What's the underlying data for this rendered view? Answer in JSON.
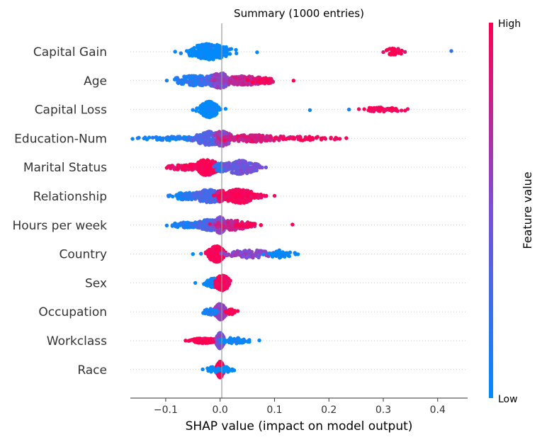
{
  "chart_data": {
    "type": "scatter",
    "subtype": "shap-beeswarm-summary",
    "title": "Summary (1000 entries)",
    "xlabel": "SHAP value (impact on model output)",
    "xlim": [
      -0.165,
      0.455
    ],
    "xticks": [
      -0.1,
      0.0,
      0.1,
      0.2,
      0.3,
      0.4
    ],
    "xtick_labels": [
      "−0.1",
      "0.0",
      "0.1",
      "0.2",
      "0.3",
      "0.4"
    ],
    "grid": false,
    "colorbar": {
      "label": "Feature value",
      "high_label": "High",
      "low_label": "Low",
      "low_color": "#008bfb",
      "mid_color": "#7b4fd8",
      "high_color": "#ff0052"
    },
    "features": [
      {
        "name": "Capital Gain",
        "clusters": [
          {
            "center": -0.02,
            "spread": 0.018,
            "count": 260,
            "width": 0.8,
            "value": 0.0
          },
          {
            "center": 0.32,
            "spread": 0.008,
            "count": 30,
            "width": 0.35,
            "value": 1.0
          }
        ],
        "outliers": [
          {
            "x": 0.068,
            "value": 0.0
          },
          {
            "x": 0.3,
            "value": 0.9
          },
          {
            "x": 0.34,
            "value": 0.85
          },
          {
            "x": 0.425,
            "value": 0.2
          },
          {
            "x": 0.012,
            "value": 0.0
          }
        ]
      },
      {
        "name": "Age",
        "clusters": [
          {
            "center": -0.045,
            "spread": 0.02,
            "count": 160,
            "width": 0.5,
            "value": 0.12
          },
          {
            "center": -0.01,
            "spread": 0.012,
            "count": 120,
            "width": 0.55,
            "value": 0.3
          },
          {
            "center": 0.0,
            "spread": 0.008,
            "count": 90,
            "width": 0.8,
            "value": 0.55
          },
          {
            "center": 0.045,
            "spread": 0.02,
            "count": 150,
            "width": 0.45,
            "value": 0.75
          },
          {
            "center": 0.08,
            "spread": 0.012,
            "count": 50,
            "width": 0.3,
            "value": 0.95
          }
        ],
        "outliers": [
          {
            "x": 0.135,
            "value": 1.0
          },
          {
            "x": 0.095,
            "value": 0.9
          },
          {
            "x": -0.098,
            "value": 0.05
          }
        ]
      },
      {
        "name": "Capital Loss",
        "clusters": [
          {
            "center": -0.02,
            "spread": 0.008,
            "count": 240,
            "width": 0.8,
            "value": 0.0
          },
          {
            "center": 0.3,
            "spread": 0.02,
            "count": 45,
            "width": 0.22,
            "value": 1.0
          }
        ],
        "outliers": [
          {
            "x": 0.165,
            "value": 0.0
          },
          {
            "x": 0.237,
            "value": 0.1
          },
          {
            "x": 0.255,
            "value": 0.95
          },
          {
            "x": 0.345,
            "value": 0.9
          },
          {
            "x": 0.01,
            "value": 0.0
          }
        ]
      },
      {
        "name": "Education-Num",
        "clusters": [
          {
            "center": -0.07,
            "spread": 0.035,
            "count": 90,
            "width": 0.2,
            "value": 0.08
          },
          {
            "center": -0.02,
            "spread": 0.012,
            "count": 150,
            "width": 0.7,
            "value": 0.35
          },
          {
            "center": 0.005,
            "spread": 0.008,
            "count": 110,
            "width": 0.8,
            "value": 0.6
          },
          {
            "center": 0.06,
            "spread": 0.03,
            "count": 150,
            "width": 0.35,
            "value": 0.85
          },
          {
            "center": 0.16,
            "spread": 0.03,
            "count": 45,
            "width": 0.2,
            "value": 1.0
          }
        ],
        "outliers": [
          {
            "x": -0.14,
            "value": 0.05
          },
          {
            "x": 0.22,
            "value": 1.0
          },
          {
            "x": -0.115,
            "value": 0.05
          }
        ]
      },
      {
        "name": "Marital Status",
        "clusters": [
          {
            "center": -0.055,
            "spread": 0.02,
            "count": 110,
            "width": 0.3,
            "value": 0.95
          },
          {
            "center": -0.025,
            "spread": 0.01,
            "count": 170,
            "width": 0.8,
            "value": 1.0
          },
          {
            "center": 0.003,
            "spread": 0.006,
            "count": 60,
            "width": 0.45,
            "value": 0.2
          },
          {
            "center": 0.038,
            "spread": 0.014,
            "count": 170,
            "width": 0.7,
            "value": 0.45
          }
        ],
        "outliers": [
          {
            "x": -0.098,
            "value": 1.0
          },
          {
            "x": 0.068,
            "value": 0.45
          }
        ]
      },
      {
        "name": "Relationship",
        "clusters": [
          {
            "center": -0.06,
            "spread": 0.015,
            "count": 90,
            "width": 0.35,
            "value": 0.1
          },
          {
            "center": -0.02,
            "spread": 0.015,
            "count": 160,
            "width": 0.65,
            "value": 0.28
          },
          {
            "center": 0.003,
            "spread": 0.005,
            "count": 70,
            "width": 0.6,
            "value": 0.9
          },
          {
            "center": 0.035,
            "spread": 0.015,
            "count": 180,
            "width": 0.7,
            "value": 1.0
          },
          {
            "center": 0.065,
            "spread": 0.008,
            "count": 25,
            "width": 0.25,
            "value": 0.95
          }
        ],
        "outliers": [
          {
            "x": -0.095,
            "value": 0.1
          },
          {
            "x": 0.1,
            "value": 0.95
          },
          {
            "x": 0.085,
            "value": 1.0
          }
        ]
      },
      {
        "name": "Hours per week",
        "clusters": [
          {
            "center": -0.055,
            "spread": 0.018,
            "count": 90,
            "width": 0.3,
            "value": 0.1
          },
          {
            "center": -0.02,
            "spread": 0.012,
            "count": 140,
            "width": 0.55,
            "value": 0.3
          },
          {
            "center": 0.0,
            "spread": 0.005,
            "count": 160,
            "width": 0.8,
            "value": 0.55
          },
          {
            "center": 0.025,
            "spread": 0.015,
            "count": 100,
            "width": 0.5,
            "value": 0.8
          },
          {
            "center": 0.05,
            "spread": 0.01,
            "count": 30,
            "width": 0.2,
            "value": 1.0
          }
        ],
        "outliers": [
          {
            "x": -0.098,
            "value": 0.05
          },
          {
            "x": 0.133,
            "value": 1.0
          },
          {
            "x": 0.075,
            "value": 1.0
          }
        ]
      },
      {
        "name": "Country",
        "clusters": [
          {
            "center": -0.007,
            "spread": 0.007,
            "count": 320,
            "width": 0.8,
            "value": 1.0
          },
          {
            "center": 0.055,
            "spread": 0.025,
            "count": 90,
            "width": 0.4,
            "value": 0.55
          },
          {
            "center": 0.11,
            "spread": 0.012,
            "count": 40,
            "width": 0.4,
            "value": 0.0
          }
        ],
        "outliers": [
          {
            "x": -0.05,
            "value": 0.0
          },
          {
            "x": 0.143,
            "value": 0.0
          },
          {
            "x": -0.035,
            "value": 0.05
          }
        ]
      },
      {
        "name": "Sex",
        "clusters": [
          {
            "center": -0.012,
            "spread": 0.007,
            "count": 220,
            "width": 0.45,
            "value": 0.05
          },
          {
            "center": 0.004,
            "spread": 0.006,
            "count": 200,
            "width": 0.8,
            "value": 1.0
          }
        ],
        "outliers": [
          {
            "x": -0.028,
            "value": 0.0
          }
        ]
      },
      {
        "name": "Occupation",
        "clusters": [
          {
            "center": 0.0,
            "spread": 0.005,
            "count": 280,
            "width": 0.8,
            "value": 0.6
          },
          {
            "center": -0.018,
            "spread": 0.006,
            "count": 50,
            "width": 0.3,
            "value": 0.1
          },
          {
            "center": 0.02,
            "spread": 0.005,
            "count": 40,
            "width": 0.25,
            "value": 1.0
          }
        ],
        "outliers": [
          {
            "x": -0.03,
            "value": 0.0
          },
          {
            "x": 0.027,
            "value": 1.0
          }
        ]
      },
      {
        "name": "Workclass",
        "clusters": [
          {
            "center": -0.03,
            "spread": 0.012,
            "count": 110,
            "width": 0.25,
            "value": 1.0
          },
          {
            "center": 0.0,
            "spread": 0.003,
            "count": 340,
            "width": 0.8,
            "value": 0.5
          },
          {
            "center": 0.025,
            "spread": 0.012,
            "count": 60,
            "width": 0.3,
            "value": 0.05
          }
        ],
        "outliers": [
          {
            "x": -0.057,
            "value": 1.0
          },
          {
            "x": 0.072,
            "value": 0.0
          },
          {
            "x": 0.05,
            "value": 0.0
          }
        ]
      },
      {
        "name": "Race",
        "clusters": [
          {
            "center": 0.0,
            "spread": 0.003,
            "count": 380,
            "width": 0.8,
            "value": 1.0
          },
          {
            "center": -0.012,
            "spread": 0.006,
            "count": 30,
            "width": 0.3,
            "value": 0.0
          },
          {
            "center": 0.012,
            "spread": 0.006,
            "count": 30,
            "width": 0.3,
            "value": 0.0
          }
        ],
        "outliers": [
          {
            "x": -0.032,
            "value": 0.0
          },
          {
            "x": 0.02,
            "value": 0.0
          }
        ]
      }
    ]
  }
}
